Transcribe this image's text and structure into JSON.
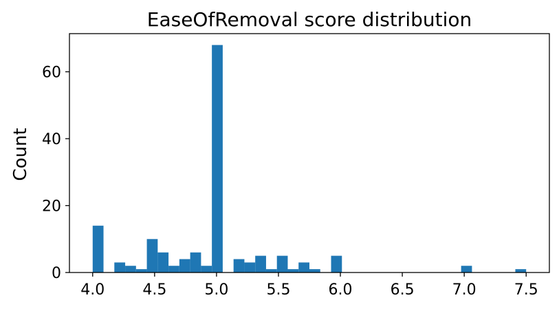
{
  "chart_data": {
    "type": "bar",
    "title": "EaseOfRemoval score distribution",
    "xlabel": "",
    "ylabel": "Count",
    "bin_width": 0.0875,
    "bins": [
      {
        "x0": 4.0,
        "count": 14
      },
      {
        "x0": 4.0875,
        "count": 0
      },
      {
        "x0": 4.175,
        "count": 3
      },
      {
        "x0": 4.2625,
        "count": 2
      },
      {
        "x0": 4.35,
        "count": 1
      },
      {
        "x0": 4.4375,
        "count": 10
      },
      {
        "x0": 4.525,
        "count": 6
      },
      {
        "x0": 4.6125,
        "count": 2
      },
      {
        "x0": 4.7,
        "count": 4
      },
      {
        "x0": 4.7875,
        "count": 6
      },
      {
        "x0": 4.875,
        "count": 2
      },
      {
        "x0": 4.9625,
        "count": 68
      },
      {
        "x0": 5.05,
        "count": 0
      },
      {
        "x0": 5.1375,
        "count": 4
      },
      {
        "x0": 5.225,
        "count": 3
      },
      {
        "x0": 5.3125,
        "count": 5
      },
      {
        "x0": 5.4,
        "count": 1
      },
      {
        "x0": 5.4875,
        "count": 5
      },
      {
        "x0": 5.575,
        "count": 1
      },
      {
        "x0": 5.6625,
        "count": 3
      },
      {
        "x0": 5.75,
        "count": 1
      },
      {
        "x0": 5.8375,
        "count": 0
      },
      {
        "x0": 5.925,
        "count": 5
      },
      {
        "x0": 6.0125,
        "count": 0
      },
      {
        "x0": 6.1,
        "count": 0
      },
      {
        "x0": 6.1875,
        "count": 0
      },
      {
        "x0": 6.275,
        "count": 0
      },
      {
        "x0": 6.3625,
        "count": 0
      },
      {
        "x0": 6.45,
        "count": 0
      },
      {
        "x0": 6.5375,
        "count": 0
      },
      {
        "x0": 6.625,
        "count": 0
      },
      {
        "x0": 6.7125,
        "count": 0
      },
      {
        "x0": 6.8,
        "count": 0
      },
      {
        "x0": 6.8875,
        "count": 0
      },
      {
        "x0": 6.975,
        "count": 2
      },
      {
        "x0": 7.0625,
        "count": 0
      },
      {
        "x0": 7.15,
        "count": 0
      },
      {
        "x0": 7.2375,
        "count": 0
      },
      {
        "x0": 7.325,
        "count": 0
      },
      {
        "x0": 7.4125,
        "count": 1
      }
    ],
    "xlim": [
      3.8125,
      7.6875
    ],
    "ylim": [
      0,
      71.4
    ],
    "xticks": [
      "4.0",
      "4.5",
      "5.0",
      "5.5",
      "6.0",
      "6.5",
      "7.0",
      "7.5"
    ],
    "yticks": [
      "0",
      "20",
      "40",
      "60"
    ],
    "grid": false,
    "legend": "none",
    "bar_color": "#1f77b4"
  }
}
